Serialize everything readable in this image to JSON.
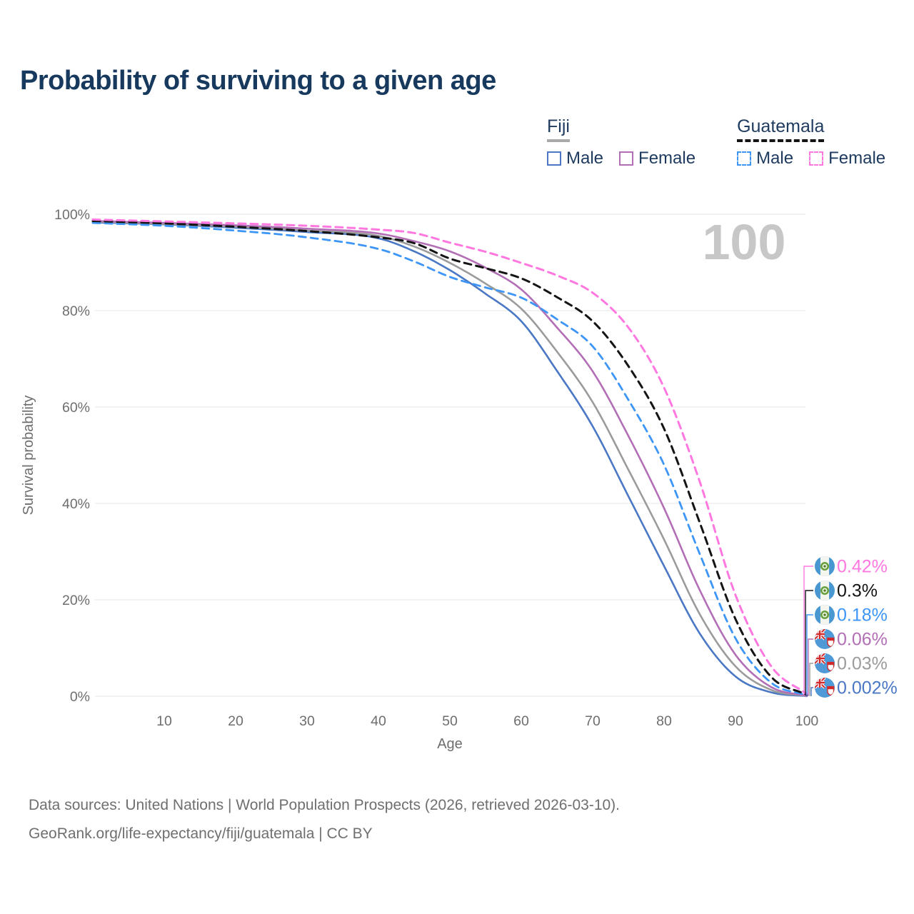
{
  "header": {
    "title": "Probability of surviving to a given age"
  },
  "legend": {
    "groups": [
      {
        "label": "Fiji",
        "underline_style": "solid",
        "underline_color": "#a9a9a9",
        "items": [
          {
            "label": "Male",
            "color": "#4a78c5",
            "dashed": false
          },
          {
            "label": "Female",
            "color": "#b36fb6",
            "dashed": false
          }
        ]
      },
      {
        "label": "Guatemala",
        "underline_style": "dashed",
        "underline_color": "#141414",
        "items": [
          {
            "label": "Male",
            "color": "#3d96f7",
            "dashed": true
          },
          {
            "label": "Female",
            "color": "#ff78e0",
            "dashed": true
          }
        ]
      }
    ]
  },
  "watermark": "100",
  "chart_data": {
    "type": "line",
    "title": "Probability of surviving to a given age",
    "xlabel": "Age",
    "ylabel": "Survival probability",
    "xlim": [
      0,
      100
    ],
    "ylim": [
      0,
      100
    ],
    "grid": "horizontal-only",
    "legend_position": "top-right",
    "x_ticks": [
      10,
      20,
      30,
      40,
      50,
      60,
      70,
      80,
      90,
      100
    ],
    "y_ticks": [
      {
        "value": 0,
        "label": "0%"
      },
      {
        "value": 20,
        "label": "20%"
      },
      {
        "value": 40,
        "label": "40%"
      },
      {
        "value": 60,
        "label": "60%"
      },
      {
        "value": 80,
        "label": "80%"
      },
      {
        "value": 100,
        "label": "100%"
      }
    ],
    "x": [
      0,
      10,
      20,
      30,
      40,
      45,
      50,
      55,
      60,
      65,
      70,
      75,
      80,
      85,
      90,
      95,
      100
    ],
    "series": [
      {
        "name": "Fiji Male",
        "country": "Fiji",
        "sex": "Male",
        "color": "#4a78c5",
        "dashed": false,
        "width": 2.6,
        "values": [
          98.3,
          97.9,
          97.2,
          96.3,
          95.0,
          92.3,
          88.4,
          83.5,
          77.8,
          67.5,
          56.0,
          41.5,
          27.0,
          13.0,
          4.1,
          0.8,
          0.002
        ]
      },
      {
        "name": "Fiji Both sexes",
        "country": "Fiji",
        "sex": "Both",
        "color": "#9b9b9b",
        "dashed": false,
        "width": 2.6,
        "values": [
          98.45,
          98.0,
          97.4,
          96.6,
          95.5,
          93.3,
          89.9,
          85.6,
          80.4,
          71.5,
          61.0,
          47.0,
          32.5,
          17.0,
          6.2,
          1.3,
          0.03
        ]
      },
      {
        "name": "Fiji Female",
        "country": "Fiji",
        "sex": "Female",
        "color": "#b36fb6",
        "dashed": false,
        "width": 2.6,
        "values": [
          98.6,
          98.2,
          97.7,
          97.0,
          96.0,
          94.4,
          92.3,
          88.9,
          84.4,
          76.5,
          67.4,
          54.0,
          39.0,
          22.0,
          8.6,
          1.9,
          0.06
        ]
      },
      {
        "name": "Guatemala Male",
        "country": "Guatemala",
        "sex": "Male",
        "color": "#3d96f7",
        "dashed": true,
        "width": 2.8,
        "values": [
          98.2,
          97.6,
          96.6,
          95.2,
          92.8,
          90.2,
          87.0,
          84.8,
          82.7,
          78.2,
          72.6,
          61.5,
          48.0,
          29.5,
          12.0,
          2.8,
          0.18
        ]
      },
      {
        "name": "Guatemala Both sexes",
        "country": "Guatemala",
        "sex": "Both",
        "color": "#141414",
        "dashed": true,
        "width": 3,
        "values": [
          98.6,
          98.1,
          97.4,
          96.5,
          95.2,
          94.0,
          90.8,
          88.8,
          86.7,
          82.8,
          77.8,
          68.5,
          55.5,
          36.0,
          16.0,
          4.0,
          0.3
        ]
      },
      {
        "name": "Guatemala Female",
        "country": "Guatemala",
        "sex": "Female",
        "color": "#ff78e0",
        "dashed": true,
        "width": 3,
        "values": [
          98.9,
          98.5,
          98.1,
          97.6,
          96.8,
          96.1,
          94.1,
          92.2,
          89.9,
          87.3,
          83.7,
          76.5,
          64.0,
          44.5,
          21.0,
          6.2,
          0.42
        ]
      }
    ],
    "end_labels": [
      {
        "text": "0.42%",
        "color": "#ff78e0",
        "flag": "guatemala",
        "series": "Guatemala Female"
      },
      {
        "text": "0.3%",
        "color": "#141414",
        "flag": "guatemala",
        "series": "Guatemala Both sexes"
      },
      {
        "text": "0.18%",
        "color": "#3d96f7",
        "flag": "guatemala",
        "series": "Guatemala Male"
      },
      {
        "text": "0.06%",
        "color": "#b36fb6",
        "flag": "fiji",
        "series": "Fiji Female"
      },
      {
        "text": "0.03%",
        "color": "#9b9b9b",
        "flag": "fiji",
        "series": "Fiji Both sexes"
      },
      {
        "text": "0.002%",
        "color": "#4a78c5",
        "flag": "fiji",
        "series": "Fiji Male"
      }
    ],
    "annotations": [
      {
        "text": "100",
        "role": "hover-age-watermark",
        "color": "#c7c7c7"
      }
    ]
  },
  "footer": {
    "line1": "Data sources: United Nations | World Population Prospects (2026, retrieved 2026-03-10).",
    "line2": "GeoRank.org/life-expectancy/fiji/guatemala | CC BY"
  }
}
